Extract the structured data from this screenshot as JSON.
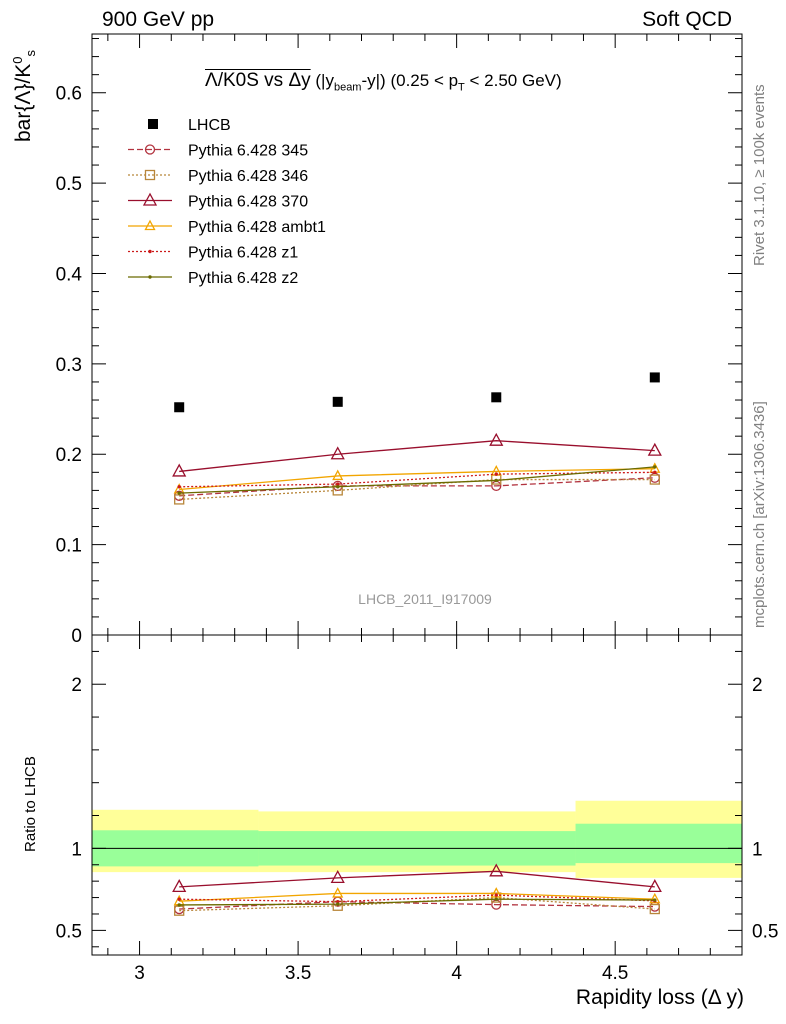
{
  "header": {
    "left": "900 GeV pp",
    "right": "Soft QCD",
    "side_top": "Rivet 3.1.10, ≥ 100k events",
    "side_bottom": "mcplots.cern.ch [arXiv:1306.3436]"
  },
  "chart_data": [
    {
      "type": "scatter",
      "title_main": "Λ/K0S vs Δy",
      "title_sel_open": "(|y",
      "title_sel_sub": "beam",
      "title_sel_close": "-y|)",
      "title_pt_open": "(0.25 < p",
      "title_pt_sub": "T",
      "title_pt_close": "< 2.50 GeV)",
      "ylabel": "bar{Λ}/K",
      "ylabel_sup": "0",
      "ylabel_sub": "s",
      "watermark": "LHCB_2011_I917009",
      "xlim": [
        2.85,
        4.9
      ],
      "ylim": [
        0,
        0.665
      ],
      "yticks": [
        "0",
        "0.1",
        "0.2",
        "0.3",
        "0.4",
        "0.5",
        "0.6"
      ],
      "x": [
        3.125,
        3.625,
        4.125,
        4.625
      ],
      "data": {
        "name": "LHCB",
        "values": [
          0.252,
          0.258,
          0.263,
          0.285
        ],
        "bin_edges": [
          2.85,
          3.375,
          3.875,
          4.375,
          4.9
        ]
      },
      "series": [
        {
          "name": "Pythia 6.428 345",
          "color": "#b2333f",
          "marker": "circle",
          "dash": "dashed",
          "values": [
            0.154,
            0.165,
            0.165,
            0.174
          ]
        },
        {
          "name": "Pythia 6.428 346",
          "color": "#b8863a",
          "marker": "square",
          "dash": "dotted",
          "values": [
            0.15,
            0.16,
            0.172,
            0.172
          ]
        },
        {
          "name": "Pythia 6.428 370",
          "color": "#990f2d",
          "marker": "triangle",
          "dash": "solid",
          "values": [
            0.181,
            0.2,
            0.215,
            0.204
          ]
        },
        {
          "name": "Pythia 6.428 ambt1",
          "color": "#f2a500",
          "marker": "triangle-sm",
          "dash": "solid",
          "values": [
            0.161,
            0.176,
            0.181,
            0.184
          ]
        },
        {
          "name": "Pythia 6.428 z1",
          "color": "#cc1a1a",
          "marker": "dot",
          "dash": "dotted",
          "values": [
            0.164,
            0.167,
            0.178,
            0.18
          ]
        },
        {
          "name": "Pythia 6.428 z2",
          "color": "#6b6b00",
          "marker": "dot",
          "dash": "solid",
          "values": [
            0.157,
            0.164,
            0.171,
            0.186
          ]
        }
      ]
    },
    {
      "type": "line",
      "ylabel": "Ratio to LHCB",
      "xlabel": "Rapidity loss (Δ y)",
      "xlim": [
        2.85,
        4.9
      ],
      "ylim": [
        0.35,
        2.3
      ],
      "xticks": [
        "3",
        "3.5",
        "4",
        "4.5"
      ],
      "yticks": [
        "0.5",
        "1",
        "2"
      ],
      "bands": [
        {
          "x0": 2.85,
          "x1": 3.375,
          "inner": [
            0.89,
            1.11
          ],
          "outer": [
            0.855,
            1.235
          ]
        },
        {
          "x0": 3.375,
          "x1": 3.875,
          "inner": [
            0.895,
            1.105
          ],
          "outer": [
            0.855,
            1.225
          ]
        },
        {
          "x0": 3.875,
          "x1": 4.375,
          "inner": [
            0.895,
            1.105
          ],
          "outer": [
            0.855,
            1.225
          ]
        },
        {
          "x0": 4.375,
          "x1": 4.9,
          "inner": [
            0.91,
            1.15
          ],
          "outer": [
            0.82,
            1.29
          ]
        }
      ],
      "series": [
        {
          "name": "Pythia 6.428 345",
          "values": [
            0.63,
            0.675,
            0.657,
            0.645
          ]
        },
        {
          "name": "Pythia 6.428 346",
          "values": [
            0.62,
            0.65,
            0.7,
            0.63
          ]
        },
        {
          "name": "Pythia 6.428 370",
          "values": [
            0.765,
            0.82,
            0.86,
            0.765
          ]
        },
        {
          "name": "Pythia 6.428 ambt1",
          "values": [
            0.678,
            0.725,
            0.725,
            0.69
          ]
        },
        {
          "name": "Pythia 6.428 z1",
          "values": [
            0.69,
            0.675,
            0.715,
            0.68
          ]
        },
        {
          "name": "Pythia 6.428 z2",
          "values": [
            0.655,
            0.66,
            0.69,
            0.685
          ]
        }
      ]
    }
  ]
}
